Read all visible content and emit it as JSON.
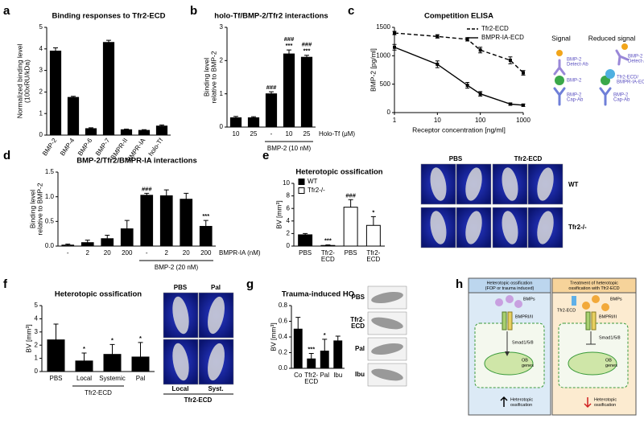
{
  "chart_data": [
    {
      "panel": "a",
      "type": "bar",
      "title": "Binding responses to Tfr2-ECD",
      "ylabel": [
        "Normalized binding level",
        "(100xRU/kDa)"
      ],
      "categories": [
        "BMP-2",
        "BMP-4",
        "BMP-6",
        "BMP-7",
        "BMPR-II",
        "BMPR-IA",
        "holo-Tf"
      ],
      "values": [
        3.9,
        1.75,
        0.3,
        4.3,
        0.25,
        0.22,
        0.42
      ],
      "errors": [
        0.15,
        0.05,
        0.04,
        0.1,
        0.03,
        0.03,
        0.05
      ],
      "color": "#000000",
      "ylim": [
        0,
        5
      ],
      "yticks": [
        0,
        1,
        2,
        3,
        4,
        5
      ]
    },
    {
      "panel": "b",
      "type": "bar",
      "title": "holo-Tf/BMP-2/Tfr2 interactions",
      "ylabel": [
        "Binding level",
        "relative to BMP-2"
      ],
      "categories": [
        "10",
        "25",
        "-",
        "10",
        "25"
      ],
      "values": [
        0.28,
        0.28,
        1.0,
        2.2,
        2.1
      ],
      "errors": [
        0.04,
        0.03,
        0.06,
        0.12,
        0.06
      ],
      "color": "#000000",
      "ylim": [
        0,
        3
      ],
      "yticks": [
        0,
        1,
        2,
        3
      ],
      "xlabel": "Holo-Tf (μM)",
      "group": "BMP-2 (10 nM)",
      "annotations": [
        [],
        [],
        [
          "###"
        ],
        [
          "###",
          "***"
        ],
        [
          "###",
          "***"
        ]
      ]
    },
    {
      "panel": "c",
      "type": "line",
      "title": "Competition ELISA",
      "ylabel": [
        "BMP-2 [pg/ml]"
      ],
      "xlabel": "Receptor concentration [ng/ml]",
      "x": [
        1,
        10,
        50,
        100,
        500,
        1000
      ],
      "xscale": "log",
      "series": [
        {
          "name": "Tfr2-ECD",
          "color": "#000000",
          "line_style": "dashed",
          "values": [
            1400,
            1340,
            1290,
            1100,
            920,
            700
          ],
          "errors": [
            30,
            30,
            30,
            50,
            60,
            40
          ]
        },
        {
          "name": "BMPR-IA-ECD",
          "color": "#000000",
          "line_style": "solid",
          "values": [
            1150,
            850,
            480,
            330,
            150,
            130
          ],
          "errors": [
            50,
            60,
            50,
            40,
            20,
            20
          ]
        }
      ],
      "xlim": [
        1,
        1000
      ],
      "xticks": [
        1,
        10,
        100,
        1000
      ],
      "ylim": [
        0,
        1500
      ],
      "yticks": [
        0,
        500,
        1000,
        1500
      ],
      "legend": "upper right",
      "diagram_labels": {
        "signal": "Signal",
        "reduced_signal": "Reduced signal",
        "detect_ab": [
          "BMP-2",
          "Detect-Ab"
        ],
        "bmp2": "BMP-2",
        "cap_ab": [
          "BMP-2",
          "Cap-Ab"
        ],
        "detect_ab_2": [
          "BMP-2",
          "Detect-Ab"
        ],
        "receptor": [
          "Tfr2-ECD/",
          "BMPR-IA-ECD"
        ],
        "cap_ab_2": [
          "BMP-2",
          "Cap-Ab"
        ]
      }
    },
    {
      "panel": "d",
      "type": "bar",
      "title": "BMP-2/Tfr2/BMPR-IA interactions",
      "ylabel": [
        "Binding level",
        "relative to BMP-2"
      ],
      "categories": [
        "-",
        "2",
        "20",
        "200",
        "-",
        "2",
        "20",
        "200"
      ],
      "values": [
        0.02,
        0.07,
        0.15,
        0.35,
        1.03,
        1.02,
        0.95,
        0.4
      ],
      "errors": [
        0.02,
        0.05,
        0.07,
        0.17,
        0.04,
        0.12,
        0.12,
        0.12
      ],
      "color": "#000000",
      "ylim": [
        0,
        1.5
      ],
      "yticks": [
        {
          "value": 0,
          "label": "0.0"
        },
        {
          "value": 0.5,
          "label": "0.5"
        },
        {
          "value": 1,
          "label": "1.0"
        },
        {
          "value": 1.5,
          "label": "1.5"
        }
      ],
      "xlabel": "BMPR-IA (nM)",
      "group": "BMP-2 (20 nM)",
      "annotations": [
        [],
        [],
        [],
        [],
        [
          "###"
        ],
        [],
        [],
        [
          "***"
        ]
      ]
    },
    {
      "panel": "e",
      "type": "bar",
      "title": "Heterotopic ossification",
      "ylabel": [
        "BV [mm³]"
      ],
      "categories": [
        "PBS",
        "Tfr2-ECD",
        "PBS",
        "Tfr2-ECD"
      ],
      "values": [
        1.8,
        0.1,
        6.2,
        3.3
      ],
      "errors": [
        0.2,
        0.1,
        1.2,
        1.4
      ],
      "colors": [
        "#000000",
        "#000000",
        "#ffffff",
        "#ffffff"
      ],
      "legend_items": [
        {
          "name": "WT",
          "color": "#000000"
        },
        {
          "name": "Tfr2-/-",
          "color": "#ffffff"
        }
      ],
      "ylim": [
        0,
        10
      ],
      "yticks": [
        0,
        2,
        4,
        6,
        8,
        10
      ],
      "annotations": [
        [],
        [
          "***"
        ],
        [
          "###"
        ],
        [
          "*"
        ]
      ],
      "image_labels": [
        "PBS",
        "Tfr2-ECD",
        "WT",
        "Tfr2-/-"
      ]
    },
    {
      "panel": "f",
      "type": "bar",
      "title": "Heterotopic ossification",
      "ylabel": [
        "BV [mm³]"
      ],
      "categories": [
        "PBS",
        "Local",
        "Systemic",
        "Pal"
      ],
      "values": [
        2.4,
        0.8,
        1.3,
        1.1
      ],
      "errors": [
        1.2,
        0.6,
        0.75,
        1.1
      ],
      "color": "#000000",
      "ylim": [
        0,
        5
      ],
      "yticks": [
        0,
        1,
        2,
        3,
        4,
        5
      ],
      "group": "Tfr2-ECD",
      "annotations": [
        [],
        [
          "*"
        ],
        [
          "*"
        ],
        [
          "*"
        ]
      ],
      "image_labels": [
        "PBS",
        "Pal",
        "Local",
        "Syst.",
        "Tfr2-ECD"
      ]
    },
    {
      "panel": "g",
      "type": "bar",
      "title": "Trauma-induced HO",
      "ylabel": [
        "BV [mm³]"
      ],
      "categories": [
        "Co",
        "Tfr2-ECD",
        "Pal",
        "Ibu"
      ],
      "values": [
        0.5,
        0.12,
        0.22,
        0.35
      ],
      "errors": [
        0.15,
        0.07,
        0.15,
        0.06
      ],
      "color": "#000000",
      "ylim": [
        0,
        0.8
      ],
      "yticks": [
        {
          "value": 0,
          "label": "0.0"
        },
        {
          "value": 0.2,
          "label": "0.2"
        },
        {
          "value": 0.4,
          "label": "0.4"
        },
        {
          "value": 0.6,
          "label": "0.6"
        },
        {
          "value": 0.8,
          "label": "0.8"
        }
      ],
      "annotations": [
        [],
        [
          "***"
        ],
        [
          "*"
        ],
        []
      ],
      "image_labels": [
        "PBS",
        "Tfr2-ECD",
        "Pal",
        "Ibu"
      ]
    },
    {
      "panel": "h",
      "type": "diagram",
      "labels": {
        "left_title": [
          "Heterotopic ossification",
          "(FOP or trauma induced)"
        ],
        "left_bmps": "BMPs",
        "left_receptor": "BMPRI/II",
        "left_smad": "Smad1/5/8",
        "left_genes": [
          "OB",
          "genes"
        ],
        "left_outcome": [
          "Heterotopic",
          "ossification"
        ],
        "right_title": [
          "Treatment of heterotopic",
          "ossification with Tfr2-ECD"
        ],
        "right_trap": "Tfr2-ECD",
        "right_bmps": "BMPs",
        "right_receptor": "BMPRI/II",
        "right_smad": "Smad1/5/8",
        "right_genes": [
          "OB",
          "genes"
        ],
        "right_outcome": [
          "Heterotopic",
          "ossification"
        ]
      }
    }
  ]
}
